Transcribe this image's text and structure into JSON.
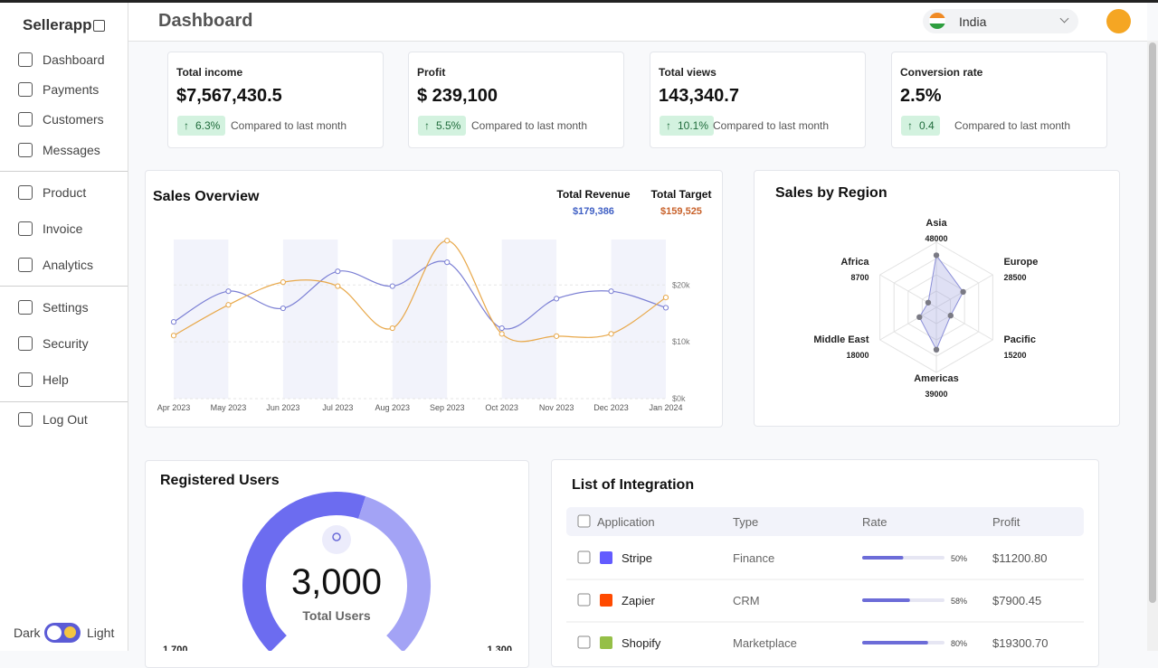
{
  "sidebar": {
    "brand": "Sellerapp",
    "nav": [
      [
        "Dashboard",
        "Payments",
        "Customers",
        "Messages"
      ],
      [
        "Product",
        "Invoice",
        "Analytics"
      ],
      [
        "Settings",
        "Security",
        "Help"
      ],
      [
        "Log Out"
      ]
    ],
    "theme_dark": "Dark",
    "theme_light": "Light"
  },
  "header": {
    "title": "Dashboard",
    "country": "India"
  },
  "stats": [
    {
      "label": "Total income",
      "value": "$7,567,430.5",
      "change": "6.3%",
      "note": "Compared to last month"
    },
    {
      "label": "Profit",
      "value": "$ 239,100",
      "change": "5.5%",
      "note": "Compared to last month"
    },
    {
      "label": "Total views",
      "value": "143,340.7",
      "change": "10.1%",
      "note": "Compared to last month"
    },
    {
      "label": "Conversion rate",
      "value": "2.5%",
      "change": "0.4",
      "note": "Compared to last month"
    }
  ],
  "sales_overview": {
    "type": "line",
    "title": "Sales Overview",
    "categories": [
      "Apr 2023",
      "May 2023",
      "Jun 2023",
      "Jul 2023",
      "Aug 2023",
      "Sep 2023",
      "Oct 2023",
      "Nov 2023",
      "Dec 2023",
      "Jan 2024"
    ],
    "series": [
      {
        "name": "Total Revenue",
        "total": "$179,386",
        "color": "#7b7fd4",
        "values": [
          13500,
          18900,
          15900,
          22400,
          19800,
          24000,
          12400,
          17600,
          18900,
          16000
        ]
      },
      {
        "name": "Total Target",
        "total": "$159,525",
        "color": "#e8a84a",
        "values": [
          11100,
          16500,
          20500,
          19800,
          12400,
          27800,
          11400,
          11000,
          11400,
          17800
        ]
      }
    ],
    "ylim": [
      0,
      28000
    ],
    "yticks": [
      {
        "value": 0,
        "label": "$0k"
      },
      {
        "value": 10000,
        "label": "$10k"
      },
      {
        "value": 20000,
        "label": "$20k"
      }
    ],
    "grid": true
  },
  "sales_by_region": {
    "type": "radar",
    "title": "Sales by Region",
    "categories": [
      "Asia",
      "Europe",
      "Pacific",
      "Americas",
      "Middle East",
      "Africa"
    ],
    "values": [
      48000,
      28500,
      15200,
      39000,
      18000,
      8700
    ],
    "rlim": [
      0,
      60000
    ],
    "color": "#8b8fd8"
  },
  "registered_users": {
    "type": "gauge",
    "title": "Registered Users",
    "total": "3,000",
    "caption": "Total Users",
    "values": [
      1700,
      1300
    ],
    "value_labels": [
      "1,700",
      "1,300"
    ],
    "colors": [
      "#6c6cf0",
      "#a3a3f5"
    ]
  },
  "integrations": {
    "title": "List of Integration",
    "columns": [
      "Application",
      "Type",
      "Rate",
      "Profit"
    ],
    "rows": [
      {
        "application": "Stripe",
        "type": "Finance",
        "rate": 50,
        "rate_label": "50%",
        "profit": "$11200.80"
      },
      {
        "application": "Zapier",
        "type": "CRM",
        "rate": 58,
        "rate_label": "58%",
        "profit": "$7900.45"
      },
      {
        "application": "Shopify",
        "type": "Marketplace",
        "rate": 80,
        "rate_label": "80%",
        "profit": "$19300.70"
      }
    ]
  }
}
